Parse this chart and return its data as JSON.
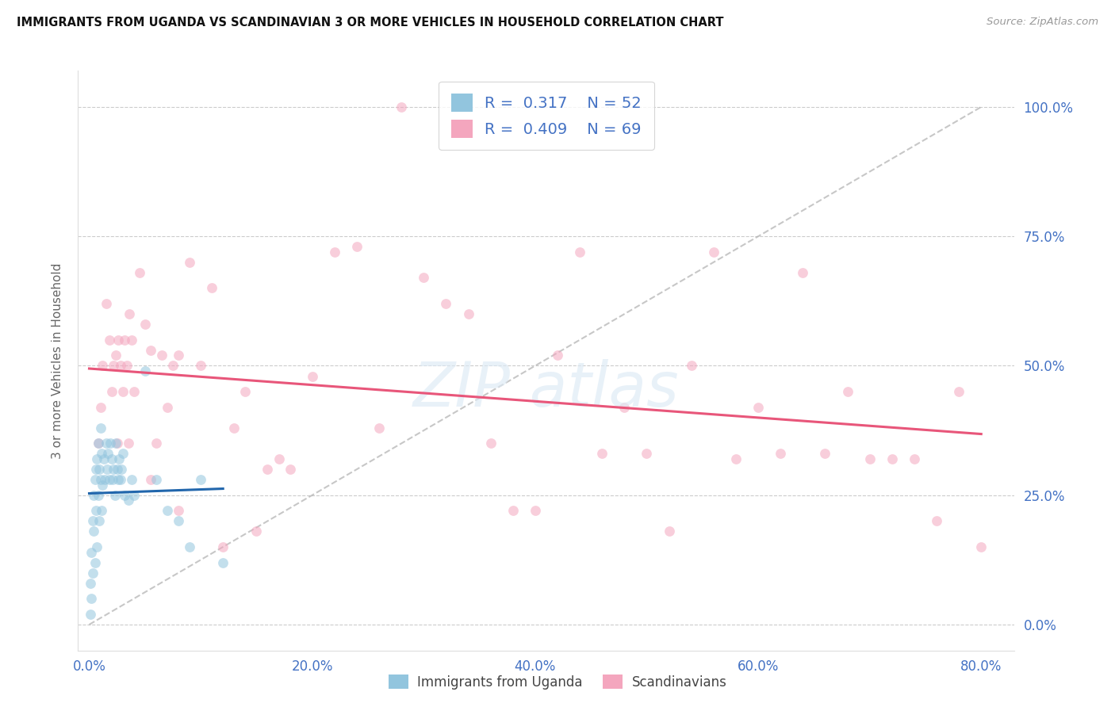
{
  "title": "IMMIGRANTS FROM UGANDA VS SCANDINAVIAN 3 OR MORE VEHICLES IN HOUSEHOLD CORRELATION CHART",
  "source": "Source: ZipAtlas.com",
  "ylabel": "3 or more Vehicles in Household",
  "ylabel_vals": [
    0.0,
    25.0,
    50.0,
    75.0,
    100.0
  ],
  "xlabel_vals": [
    0.0,
    20.0,
    40.0,
    60.0,
    80.0
  ],
  "xlim": [
    -1.0,
    83.0
  ],
  "ylim": [
    -5.0,
    107.0
  ],
  "legend_r1": "0.317",
  "legend_n1": "52",
  "legend_r2": "0.409",
  "legend_n2": "69",
  "legend_label1": "Immigrants from Uganda",
  "legend_label2": "Scandinavians",
  "color_uganda": "#92c5de",
  "color_scand": "#f4a6be",
  "color_line_uganda": "#2166ac",
  "color_line_scand": "#e8567a",
  "color_diag": "#b0b0b0",
  "color_axis": "#4472C4",
  "scatter_alpha": 0.55,
  "scatter_size": 85,
  "uganda_x": [
    0.1,
    0.1,
    0.2,
    0.2,
    0.3,
    0.3,
    0.4,
    0.4,
    0.5,
    0.5,
    0.6,
    0.6,
    0.7,
    0.7,
    0.8,
    0.8,
    0.9,
    0.9,
    1.0,
    1.0,
    1.1,
    1.1,
    1.2,
    1.3,
    1.4,
    1.5,
    1.6,
    1.7,
    1.8,
    1.9,
    2.0,
    2.1,
    2.2,
    2.3,
    2.4,
    2.5,
    2.6,
    2.7,
    2.8,
    2.9,
    3.0,
    3.2,
    3.5,
    3.8,
    4.0,
    5.0,
    6.0,
    7.0,
    8.0,
    9.0,
    10.0,
    12.0
  ],
  "uganda_y": [
    2,
    8,
    5,
    14,
    10,
    20,
    18,
    25,
    12,
    28,
    22,
    30,
    15,
    32,
    25,
    35,
    20,
    30,
    28,
    38,
    22,
    33,
    27,
    32,
    28,
    35,
    30,
    33,
    28,
    35,
    32,
    28,
    30,
    25,
    35,
    30,
    28,
    32,
    28,
    30,
    33,
    25,
    24,
    28,
    25,
    49,
    28,
    22,
    20,
    15,
    28,
    12
  ],
  "scand_x": [
    0.8,
    1.0,
    1.2,
    1.5,
    1.8,
    2.0,
    2.2,
    2.4,
    2.6,
    2.8,
    3.0,
    3.2,
    3.4,
    3.6,
    3.8,
    4.0,
    4.5,
    5.0,
    5.5,
    6.0,
    6.5,
    7.0,
    7.5,
    8.0,
    9.0,
    10.0,
    11.0,
    12.0,
    13.0,
    14.0,
    15.0,
    16.0,
    17.0,
    18.0,
    20.0,
    22.0,
    24.0,
    26.0,
    28.0,
    30.0,
    32.0,
    34.0,
    36.0,
    38.0,
    40.0,
    42.0,
    44.0,
    46.0,
    48.0,
    50.0,
    52.0,
    54.0,
    56.0,
    58.0,
    60.0,
    62.0,
    64.0,
    66.0,
    68.0,
    70.0,
    72.0,
    74.0,
    76.0,
    78.0,
    80.0,
    2.5,
    3.5,
    5.5,
    8.0
  ],
  "scand_y": [
    35,
    42,
    50,
    62,
    55,
    45,
    50,
    52,
    55,
    50,
    45,
    55,
    50,
    60,
    55,
    45,
    68,
    58,
    53,
    35,
    52,
    42,
    50,
    52,
    70,
    50,
    65,
    15,
    38,
    45,
    18,
    30,
    32,
    30,
    48,
    72,
    73,
    38,
    100,
    67,
    62,
    60,
    35,
    22,
    22,
    52,
    72,
    33,
    42,
    33,
    18,
    50,
    72,
    32,
    42,
    33,
    68,
    33,
    45,
    32,
    32,
    32,
    20,
    45,
    15,
    35,
    35,
    28,
    22
  ]
}
